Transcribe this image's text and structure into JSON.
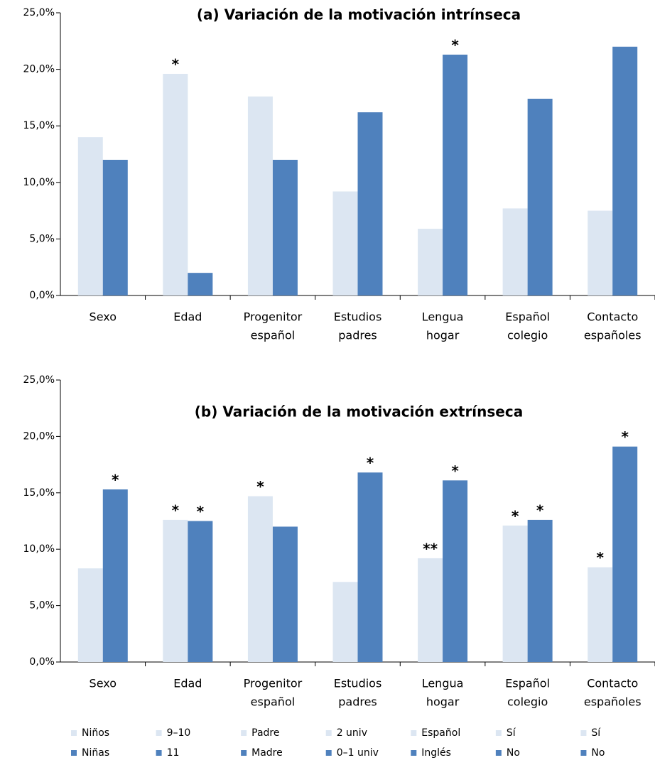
{
  "chart_data": [
    {
      "type": "bar",
      "title": "(a) Variación de la motivación intrínseca",
      "categories": [
        [
          "Sexo"
        ],
        [
          "Edad"
        ],
        [
          "Progenitor",
          "español"
        ],
        [
          "Estudios",
          "padres"
        ],
        [
          "Lengua",
          "hogar"
        ],
        [
          "Español",
          "colegio"
        ],
        [
          "Contacto",
          "españoles"
        ]
      ],
      "series": [
        {
          "color": "#dce6f2",
          "values": [
            14.0,
            19.6,
            17.6,
            9.2,
            5.9,
            7.7,
            7.5
          ]
        },
        {
          "color": "#4f81bd",
          "values": [
            12.0,
            2.0,
            12.0,
            16.2,
            21.3,
            17.4,
            22.0
          ]
        }
      ],
      "ylim": [
        0,
        25
      ],
      "yticks": [
        {
          "value": 0,
          "label": "0,0%"
        },
        {
          "value": 5,
          "label": "5,0%"
        },
        {
          "value": 10,
          "label": "10,0%"
        },
        {
          "value": 15,
          "label": "15,0%"
        },
        {
          "value": 20,
          "label": "20,0%"
        },
        {
          "value": 25,
          "label": "25,0%"
        }
      ],
      "annotations": [
        {
          "text": "*",
          "series": 0,
          "category": 1
        },
        {
          "text": "*",
          "series": 1,
          "category": 4
        }
      ]
    },
    {
      "type": "bar",
      "title": "(b) Variación de la motivación extrínseca",
      "categories": [
        [
          "Sexo"
        ],
        [
          "Edad"
        ],
        [
          "Progenitor",
          "español"
        ],
        [
          "Estudios",
          "padres"
        ],
        [
          "Lengua",
          "hogar"
        ],
        [
          "Español",
          "colegio"
        ],
        [
          "Contacto",
          "españoles"
        ]
      ],
      "series": [
        {
          "color": "#dce6f2",
          "values": [
            8.3,
            12.6,
            14.7,
            7.1,
            9.2,
            12.1,
            8.4
          ],
          "names": [
            "Niños",
            "9–10",
            "Padre",
            "2 univ",
            "Español",
            "Sí",
            "Sí"
          ]
        },
        {
          "color": "#4f81bd",
          "values": [
            15.3,
            12.5,
            12.0,
            16.8,
            16.1,
            12.6,
            19.1
          ],
          "names": [
            "Niñas",
            "11",
            "Madre",
            "0–1 univ",
            "Inglés",
            "No",
            "No"
          ]
        }
      ],
      "ylim": [
        0,
        25
      ],
      "yticks": [
        {
          "value": 0,
          "label": "0,0%"
        },
        {
          "value": 5,
          "label": "5,0%"
        },
        {
          "value": 10,
          "label": "10,0%"
        },
        {
          "value": 15,
          "label": "15,0%"
        },
        {
          "value": 20,
          "label": "20,0%"
        },
        {
          "value": 25,
          "label": "25,0%"
        }
      ],
      "annotations": [
        {
          "text": "*",
          "series": 1,
          "category": 0
        },
        {
          "text": "*",
          "series": 0,
          "category": 1
        },
        {
          "text": "*",
          "series": 1,
          "category": 1
        },
        {
          "text": "*",
          "series": 0,
          "category": 2
        },
        {
          "text": "*",
          "series": 1,
          "category": 3
        },
        {
          "text": "**",
          "series": 0,
          "category": 4
        },
        {
          "text": "*",
          "series": 1,
          "category": 4
        },
        {
          "text": "*",
          "series": 0,
          "category": 5
        },
        {
          "text": "*",
          "series": 1,
          "category": 5
        },
        {
          "text": "*",
          "series": 0,
          "category": 6
        },
        {
          "text": "*",
          "series": 1,
          "category": 6
        }
      ]
    }
  ]
}
